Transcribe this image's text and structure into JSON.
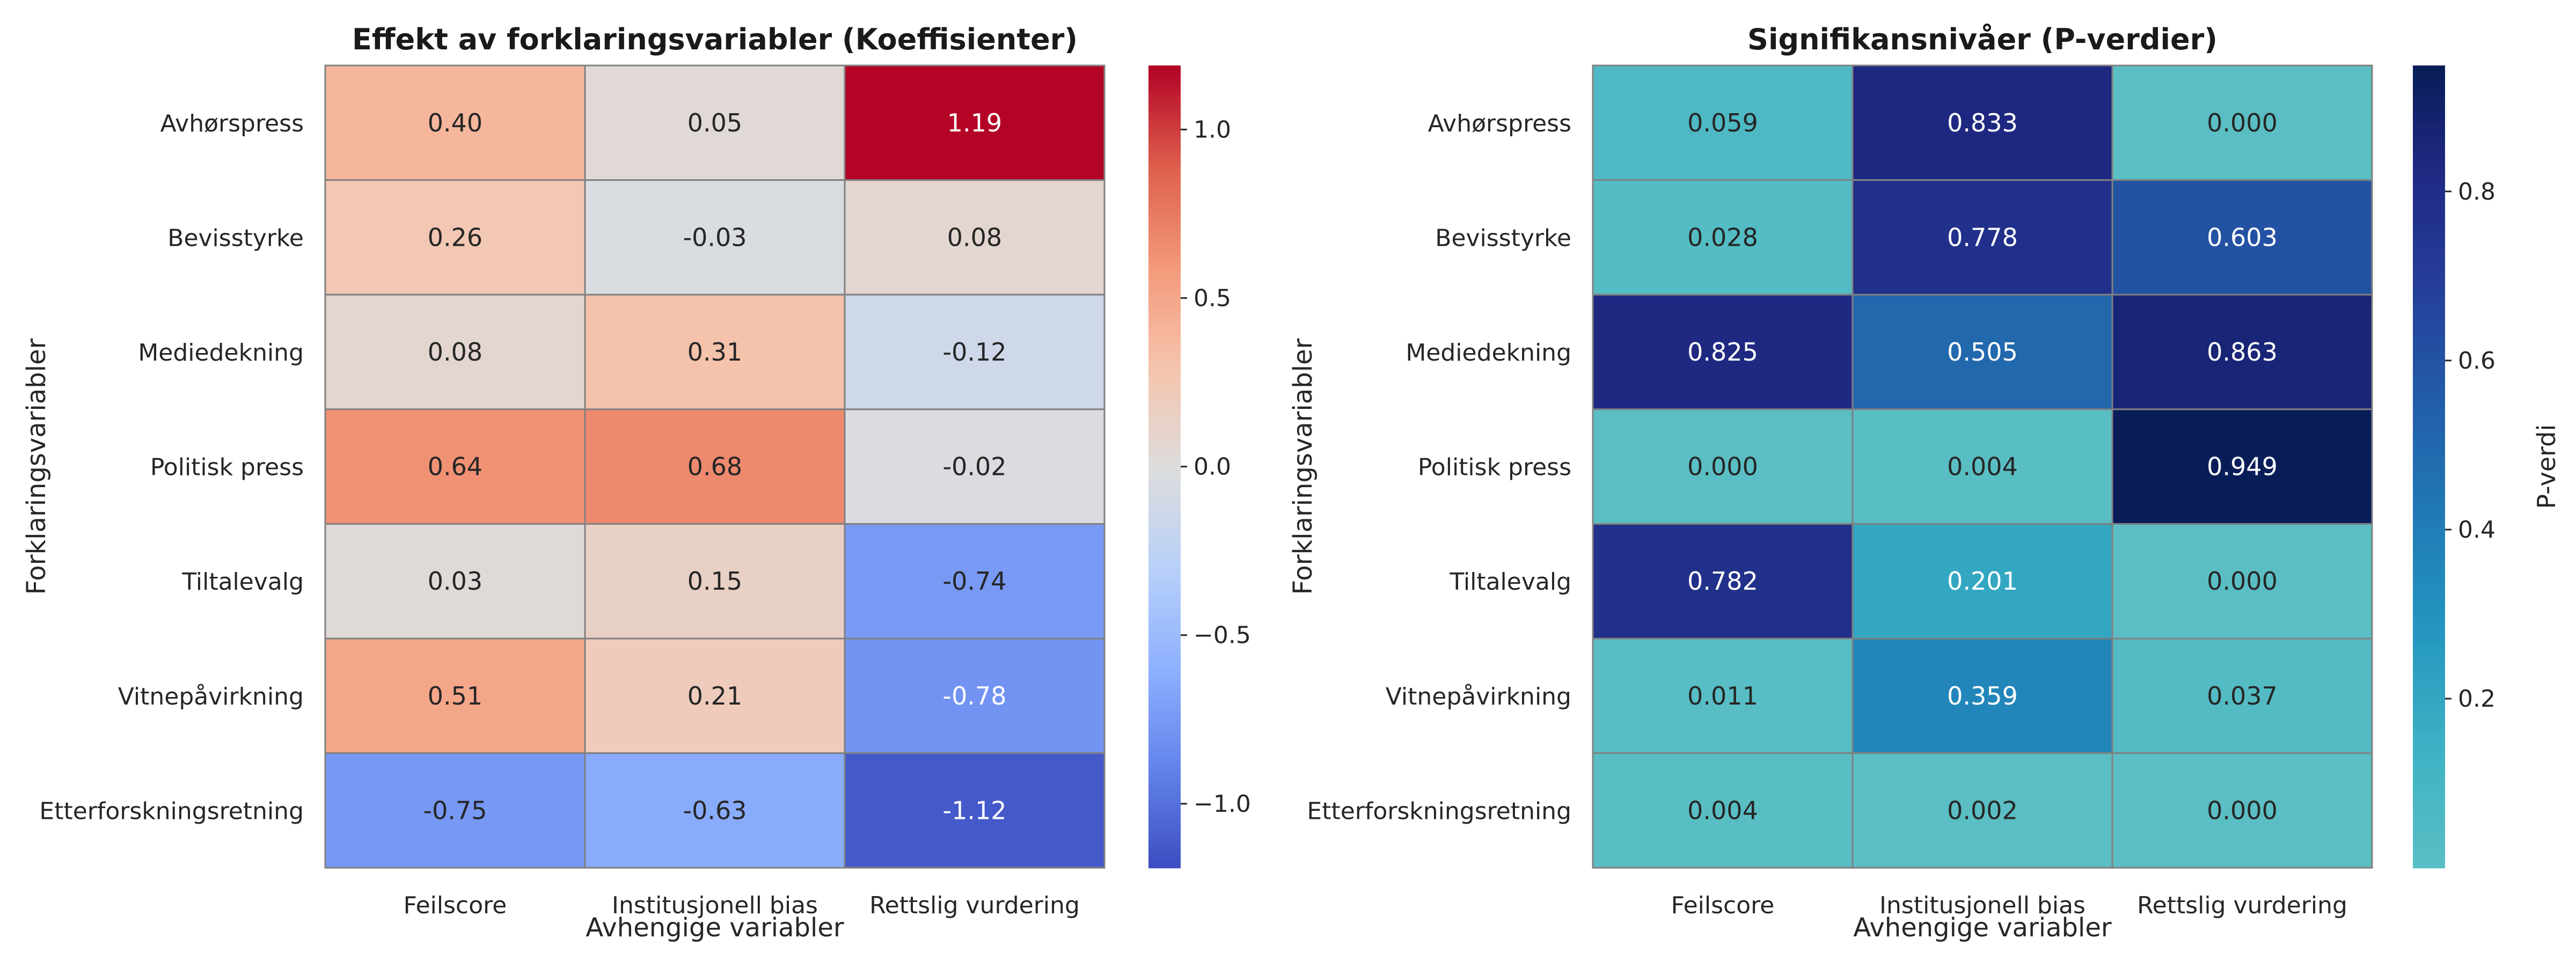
{
  "chart_data": [
    {
      "type": "heatmap",
      "title": "Effekt av forklaringsvariabler (Koeffisienter)",
      "xlabel": "Avhengige variabler",
      "ylabel": "Forklaringsvariabler",
      "x_categories": [
        "Feilscore",
        "Institusjonell bias",
        "Rettslig vurdering"
      ],
      "y_categories": [
        "Avhørspress",
        "Bevisstyrke",
        "Mediedekning",
        "Politisk press",
        "Tiltalevalg",
        "Vitnepåvirkning",
        "Etterforskningsretning"
      ],
      "values": [
        [
          0.4,
          0.05,
          1.19
        ],
        [
          0.26,
          -0.03,
          0.08
        ],
        [
          0.08,
          0.31,
          -0.12
        ],
        [
          0.64,
          0.68,
          -0.02
        ],
        [
          0.03,
          0.15,
          -0.74
        ],
        [
          0.51,
          0.21,
          -0.78
        ],
        [
          -0.75,
          -0.63,
          -1.12
        ]
      ],
      "value_format": "0.00",
      "colormap": "coolwarm",
      "color_range": [
        -1.19,
        1.19
      ],
      "colorbar_label": "",
      "colorbar_ticks": [
        -1.0,
        -0.5,
        0.0,
        0.5,
        1.0
      ],
      "colorbar_tick_labels": [
        "−1.0",
        "−0.5",
        "0.0",
        "0.5",
        "1.0"
      ]
    },
    {
      "type": "heatmap",
      "title": "Signifikansnivåer (P-verdier)",
      "xlabel": "Avhengige variabler",
      "ylabel": "Forklaringsvariabler",
      "x_categories": [
        "Feilscore",
        "Institusjonell bias",
        "Rettslig vurdering"
      ],
      "y_categories": [
        "Avhørspress",
        "Bevisstyrke",
        "Mediedekning",
        "Politisk press",
        "Tiltalevalg",
        "Vitnepåvirkning",
        "Etterforskningsretning"
      ],
      "values": [
        [
          0.059,
          0.833,
          0.0
        ],
        [
          0.028,
          0.778,
          0.603
        ],
        [
          0.825,
          0.505,
          0.863
        ],
        [
          0.0,
          0.004,
          0.949
        ],
        [
          0.782,
          0.201,
          0.0
        ],
        [
          0.011,
          0.359,
          0.037
        ],
        [
          0.004,
          0.002,
          0.0
        ]
      ],
      "value_format": "0.000",
      "colormap": "YlGnBu",
      "color_range": [
        0.0,
        0.949
      ],
      "colorbar_label": "P-verdi",
      "colorbar_ticks": [
        0.2,
        0.4,
        0.6,
        0.8
      ],
      "colorbar_tick_labels": [
        "0.2",
        "0.4",
        "0.6",
        "0.8"
      ]
    }
  ]
}
